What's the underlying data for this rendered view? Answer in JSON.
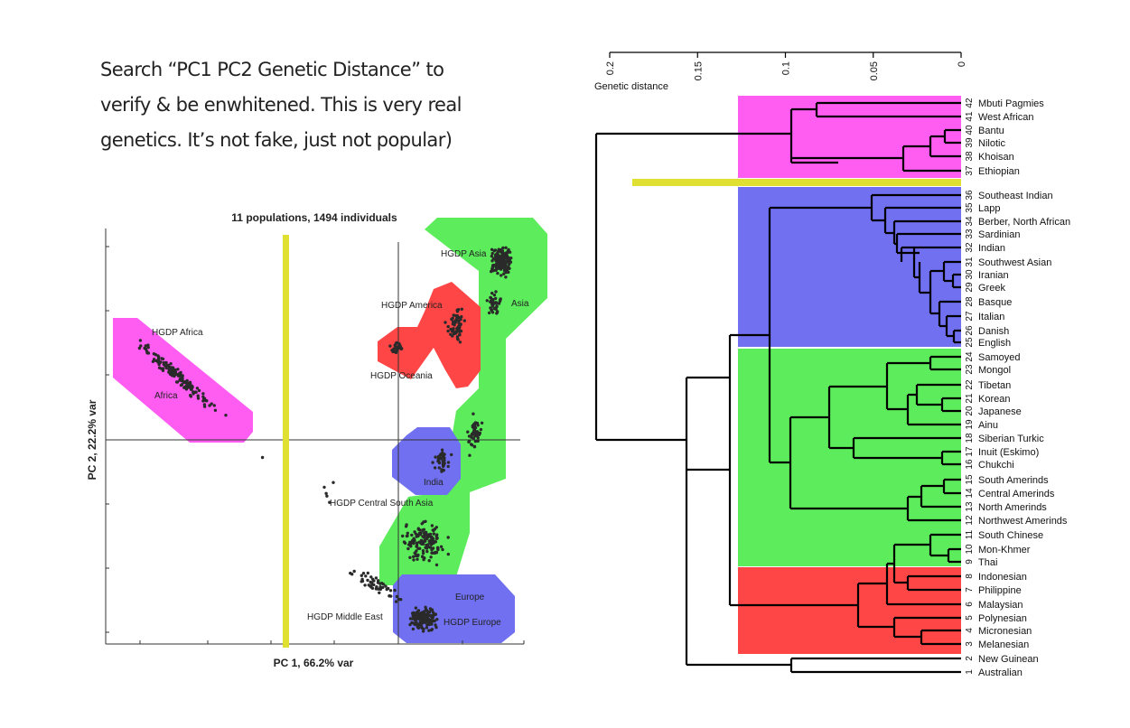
{
  "caption": {
    "line1": "Search “PC1 PC2 Genetic Distance” to",
    "line2": "verify & be enwhitened. This is very real",
    "line3": "genetics. It’s not fake, just not popular)"
  },
  "colors": {
    "magenta": "#ff5cf2",
    "blue": "#7070f0",
    "green": "#5cec5c",
    "red": "#ff4646",
    "yellow": "#e0e032"
  },
  "chart_data": [
    {
      "type": "scatter",
      "title": "11 populations, 1494 individuals",
      "xlabel": "PC 1, 66.2% var",
      "ylabel": "PC 2, 22.2% var",
      "region_labels": [
        {
          "id": "asia",
          "text": "HGDP Asia"
        },
        {
          "id": "asia2",
          "text": "Asia"
        },
        {
          "id": "america",
          "text": "HGDP America"
        },
        {
          "id": "oceania",
          "text": "HGDP Oceania"
        },
        {
          "id": "africa",
          "text": "HGDP Africa"
        },
        {
          "id": "africa2",
          "text": "Africa"
        },
        {
          "id": "india",
          "text": "India"
        },
        {
          "id": "csa",
          "text": "HGDP Central South Asia"
        },
        {
          "id": "europe",
          "text": "Europe"
        },
        {
          "id": "europe2",
          "text": "HGDP Europe"
        },
        {
          "id": "me",
          "text": "HGDP Middle East"
        }
      ]
    },
    {
      "type": "dendrogram",
      "xlabel": "Genetic distance",
      "ticks": [
        "0.2",
        "0.15",
        "0.1",
        "0.05",
        "0"
      ],
      "tick_values": [
        0.2,
        0.15,
        0.1,
        0.05,
        0
      ],
      "populations": [
        {
          "n": "42",
          "name": "Mbuti Pagmies"
        },
        {
          "n": "41",
          "name": "West African"
        },
        {
          "n": "40",
          "name": "Bantu"
        },
        {
          "n": "39",
          "name": "Nilotic"
        },
        {
          "n": "38",
          "name": "Khoisan"
        },
        {
          "n": "37",
          "name": "Ethiopian"
        },
        {
          "n": "36",
          "name": "Southeast Indian"
        },
        {
          "n": "35",
          "name": "Lapp"
        },
        {
          "n": "34",
          "name": "Berber, North African"
        },
        {
          "n": "33",
          "name": "Sardinian"
        },
        {
          "n": "32",
          "name": "Indian"
        },
        {
          "n": "31",
          "name": "Southwest Asian"
        },
        {
          "n": "30",
          "name": "Iranian"
        },
        {
          "n": "29",
          "name": "Greek"
        },
        {
          "n": "28",
          "name": "Basque"
        },
        {
          "n": "27",
          "name": "Italian"
        },
        {
          "n": "26",
          "name": "Danish"
        },
        {
          "n": "25",
          "name": "English"
        },
        {
          "n": "24",
          "name": "Samoyed"
        },
        {
          "n": "23",
          "name": "Mongol"
        },
        {
          "n": "22",
          "name": "Tibetan"
        },
        {
          "n": "21",
          "name": "Korean"
        },
        {
          "n": "20",
          "name": "Japanese"
        },
        {
          "n": "19",
          "name": "Ainu"
        },
        {
          "n": "18",
          "name": "Siberian Turkic"
        },
        {
          "n": "17",
          "name": "Inuit (Eskimo)"
        },
        {
          "n": "16",
          "name": "Chukchi"
        },
        {
          "n": "15",
          "name": "South Amerinds"
        },
        {
          "n": "14",
          "name": "Central Amerinds"
        },
        {
          "n": "13",
          "name": "North Amerinds"
        },
        {
          "n": "12",
          "name": "Northwest Amerinds"
        },
        {
          "n": "11",
          "name": "South Chinese"
        },
        {
          "n": "10",
          "name": "Mon-Khmer"
        },
        {
          "n": "9",
          "name": "Thai"
        },
        {
          "n": "8",
          "name": "Indonesian"
        },
        {
          "n": "7",
          "name": "Philippine"
        },
        {
          "n": "6",
          "name": "Malaysian"
        },
        {
          "n": "5",
          "name": "Polynesian"
        },
        {
          "n": "4",
          "name": "Micronesian"
        },
        {
          "n": "3",
          "name": "Melanesian"
        },
        {
          "n": "2",
          "name": "New Guinean"
        },
        {
          "n": "1",
          "name": "Australian"
        }
      ]
    }
  ]
}
